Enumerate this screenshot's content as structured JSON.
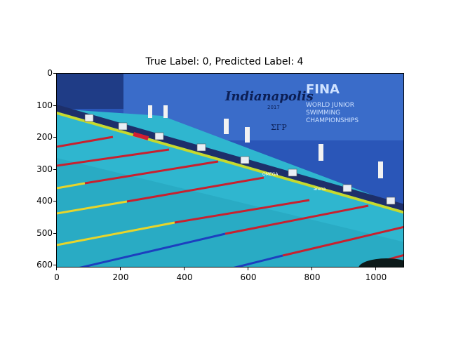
{
  "figure": {
    "title": "True Label: 0, Predicted Label: 4",
    "image_description": "Swimming pool with racing lanes, starting blocks and officials",
    "banner_text": [
      "Indianapolis",
      "2017",
      "FINA",
      "WORLD JUNIOR",
      "SWIMMING",
      "CHAMPIONSHIPS",
      "ΣΓΡ",
      "OMEGA",
      "arena"
    ],
    "xticks": [
      "0",
      "200",
      "400",
      "600",
      "800",
      "1000"
    ],
    "yticks": [
      "0",
      "100",
      "200",
      "300",
      "400",
      "500",
      "600"
    ]
  }
}
